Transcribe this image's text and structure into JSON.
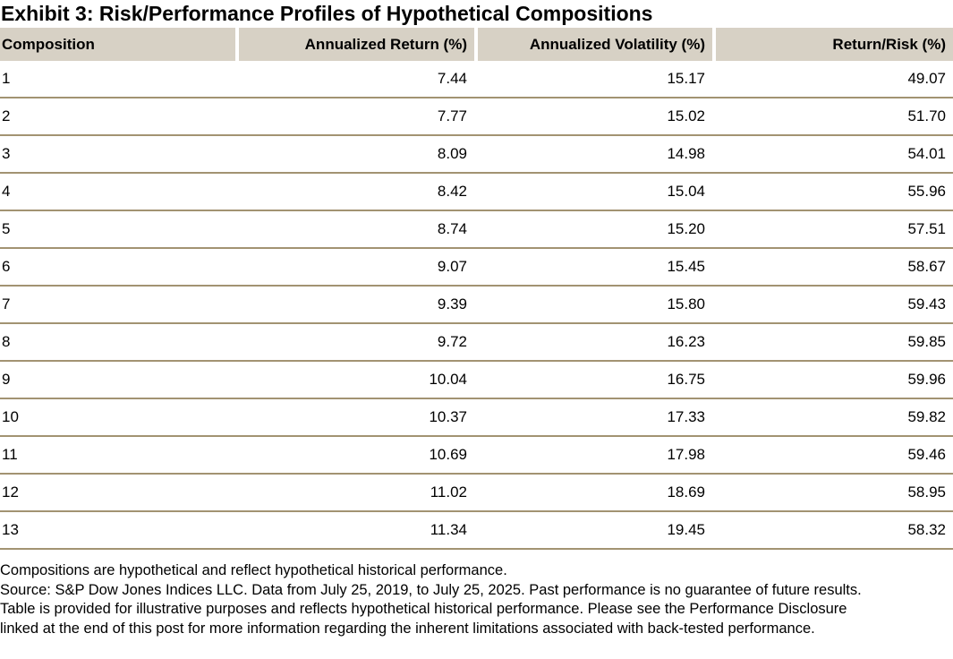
{
  "title": "Exhibit 3: Risk/Performance Profiles of Hypothetical Compositions",
  "table": {
    "columns": [
      "Composition",
      "Annualized Return (%)",
      "Annualized Volatility (%)",
      "Return/Risk (%)"
    ],
    "rows": [
      [
        "1",
        "7.44",
        "15.17",
        "49.07"
      ],
      [
        "2",
        "7.77",
        "15.02",
        "51.70"
      ],
      [
        "3",
        "8.09",
        "14.98",
        "54.01"
      ],
      [
        "4",
        "8.42",
        "15.04",
        "55.96"
      ],
      [
        "5",
        "8.74",
        "15.20",
        "57.51"
      ],
      [
        "6",
        "9.07",
        "15.45",
        "58.67"
      ],
      [
        "7",
        "9.39",
        "15.80",
        "59.43"
      ],
      [
        "8",
        "9.72",
        "16.23",
        "59.85"
      ],
      [
        "9",
        "10.04",
        "16.75",
        "59.96"
      ],
      [
        "10",
        "10.37",
        "17.33",
        "59.82"
      ],
      [
        "11",
        "10.69",
        "17.98",
        "59.46"
      ],
      [
        "12",
        "11.02",
        "18.69",
        "58.95"
      ],
      [
        "13",
        "11.34",
        "19.45",
        "58.32"
      ]
    ]
  },
  "footnotes": [
    "Compositions are hypothetical and reflect hypothetical historical performance.",
    "Source: S&P Dow Jones Indices LLC. Data from July 25, 2019, to July 25, 2025. Past performance is no guarantee of future results.",
    "Table is provided for illustrative purposes and reflects hypothetical historical performance. Please see the Performance Disclosure",
    "linked at the end of this post for more information regarding the inherent limitations associated with back-tested performance."
  ],
  "colors": {
    "header_bg": "#d7d1c5",
    "row_line": "#a29372",
    "text": "#000000"
  }
}
